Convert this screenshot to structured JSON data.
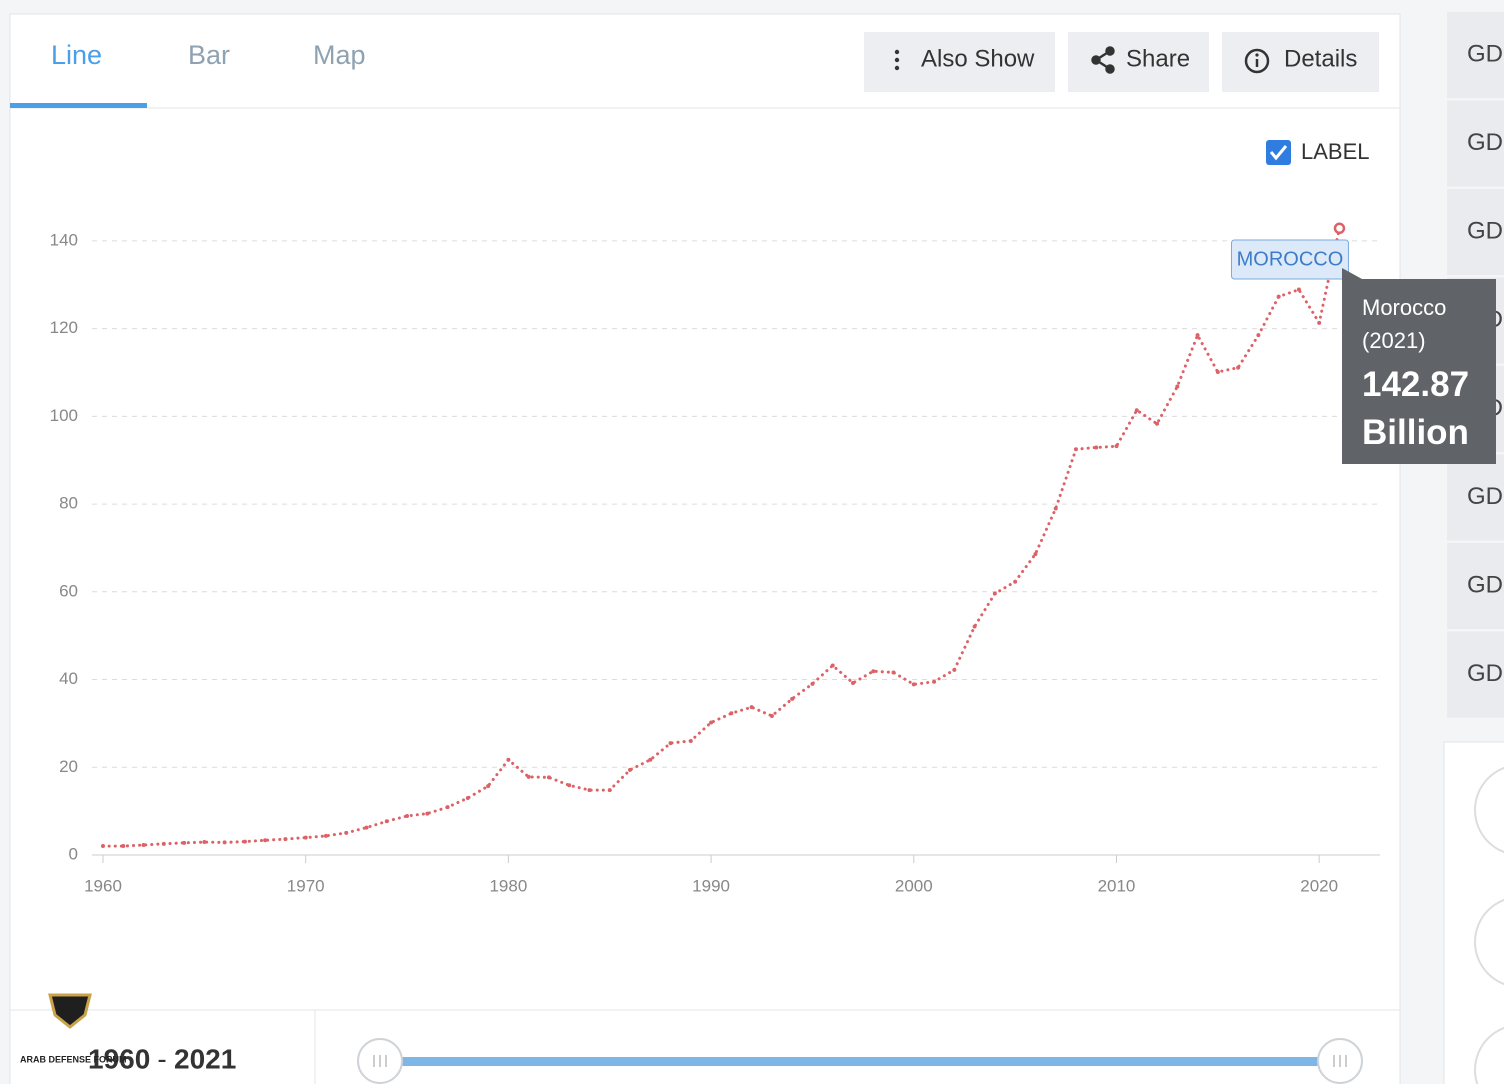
{
  "tabs": [
    "Line",
    "Bar",
    "Map"
  ],
  "buttons": [
    "Also Show",
    "Share",
    "Details"
  ],
  "label_toggle": "LABEL",
  "sidebar": [
    "GD",
    "GD",
    "GD",
    "GD",
    "GD",
    "GD",
    "GD",
    "GD"
  ],
  "range": {
    "start": "1960",
    "separator": "-",
    "end": "2021"
  },
  "watermark": "ARAB DEFENSE FORUM",
  "chart_data": {
    "type": "line",
    "x": [
      1960,
      1961,
      1962,
      1963,
      1964,
      1965,
      1966,
      1967,
      1968,
      1969,
      1970,
      1971,
      1972,
      1973,
      1974,
      1975,
      1976,
      1977,
      1978,
      1979,
      1980,
      1981,
      1982,
      1983,
      1984,
      1985,
      1986,
      1987,
      1988,
      1989,
      1990,
      1991,
      1992,
      1993,
      1994,
      1995,
      1996,
      1997,
      1998,
      1999,
      2000,
      2001,
      2002,
      2003,
      2004,
      2005,
      2006,
      2007,
      2008,
      2009,
      2010,
      2011,
      2012,
      2013,
      2014,
      2015,
      2016,
      2017,
      2018,
      2019,
      2020,
      2021
    ],
    "series": [
      {
        "name": "MOROCCO",
        "color": "#dc6268",
        "values": [
          2.04,
          2.04,
          2.27,
          2.55,
          2.77,
          2.95,
          2.88,
          3.05,
          3.35,
          3.63,
          3.96,
          4.36,
          5.04,
          6.24,
          7.68,
          8.89,
          9.43,
          10.9,
          13.0,
          15.7,
          21.7,
          17.8,
          17.7,
          15.9,
          14.8,
          14.8,
          19.4,
          21.7,
          25.5,
          26.0,
          30.2,
          32.3,
          33.7,
          31.7,
          35.6,
          39.0,
          43.2,
          39.2,
          41.9,
          41.6,
          38.9,
          39.5,
          42.2,
          52.1,
          59.6,
          62.3,
          68.6,
          79.0,
          92.5,
          92.9,
          93.2,
          101.4,
          98.3,
          106.8,
          118.5,
          110.1,
          111.1,
          118.5,
          127.3,
          128.9,
          121.3,
          142.87
        ]
      }
    ],
    "xlim": [
      1960,
      2023
    ],
    "xticks": [
      1960,
      1970,
      1980,
      1990,
      2000,
      2010,
      2020
    ],
    "ylim": [
      0,
      150
    ],
    "yticks": [
      0,
      20,
      40,
      60,
      80,
      100,
      120,
      140
    ],
    "grid": true,
    "tooltip": {
      "title": "Morocco",
      "year": "(2021)",
      "value_label": "142.87 Billion"
    }
  }
}
